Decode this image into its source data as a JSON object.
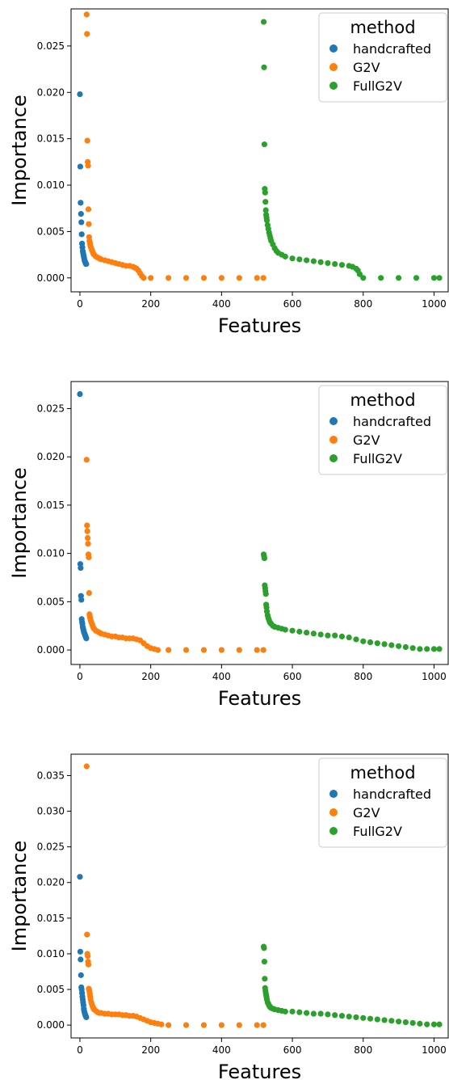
{
  "chart_data": [
    {
      "type": "scatter",
      "xlabel": "Features",
      "ylabel": "Importance",
      "xlim": [
        -25,
        1040
      ],
      "ylim": [
        -0.0015,
        0.029
      ],
      "xticks": [
        0,
        200,
        400,
        600,
        800,
        1000
      ],
      "yticks": [
        0.0,
        0.005,
        0.01,
        0.015,
        0.02,
        0.025
      ],
      "ytick_labels": [
        "0.000",
        "0.005",
        "0.010",
        "0.015",
        "0.020",
        "0.025"
      ],
      "legend": {
        "title": "method",
        "position": "top-right"
      },
      "series": [
        {
          "name": "handcrafted",
          "color": "#1f77b4",
          "x": [
            0,
            1,
            2,
            3,
            4,
            5,
            6,
            7,
            8,
            9,
            10,
            11,
            12,
            13,
            14,
            15,
            16,
            17,
            18
          ],
          "y": [
            0.0198,
            0.012,
            0.0081,
            0.0069,
            0.006,
            0.0047,
            0.0037,
            0.0033,
            0.0029,
            0.0027,
            0.0025,
            0.0023,
            0.0021,
            0.0019,
            0.0018,
            0.0017,
            0.0016,
            0.0015,
            0.0015
          ]
        },
        {
          "name": "G2V",
          "color": "#ff7f0e",
          "x": [
            19,
            20,
            21,
            22,
            23,
            24,
            25,
            26,
            27,
            28,
            29,
            30,
            32,
            34,
            36,
            38,
            40,
            45,
            50,
            55,
            60,
            70,
            80,
            90,
            100,
            110,
            120,
            130,
            140,
            150,
            155,
            160,
            165,
            170,
            175,
            180,
            200,
            250,
            300,
            350,
            400,
            450,
            500,
            518
          ],
          "y": [
            0.0284,
            0.0263,
            0.0148,
            0.0125,
            0.0121,
            0.0074,
            0.0058,
            0.0044,
            0.004,
            0.0038,
            0.0036,
            0.0034,
            0.0032,
            0.003,
            0.0028,
            0.0026,
            0.0025,
            0.0023,
            0.0022,
            0.0021,
            0.002,
            0.0019,
            0.0018,
            0.0017,
            0.0016,
            0.0015,
            0.0014,
            0.0013,
            0.0013,
            0.0012,
            0.0011,
            0.001,
            0.0008,
            0.0005,
            0.0002,
            0.0,
            0.0,
            0.0,
            0.0,
            0.0,
            0.0,
            0.0,
            0.0,
            0.0
          ]
        },
        {
          "name": "FullG2V",
          "color": "#2ca02c",
          "x": [
            519,
            520,
            521,
            522,
            523,
            524,
            525,
            526,
            527,
            528,
            530,
            532,
            534,
            536,
            538,
            540,
            545,
            550,
            555,
            560,
            570,
            580,
            600,
            620,
            640,
            660,
            680,
            700,
            720,
            740,
            760,
            770,
            780,
            785,
            790,
            800,
            850,
            900,
            950,
            1000,
            1015
          ],
          "y": [
            0.0276,
            0.0227,
            0.0144,
            0.0096,
            0.0092,
            0.0082,
            0.0073,
            0.0068,
            0.0065,
            0.0062,
            0.0057,
            0.0053,
            0.0049,
            0.0046,
            0.0043,
            0.004,
            0.0036,
            0.0032,
            0.0029,
            0.0027,
            0.0025,
            0.0023,
            0.0021,
            0.002,
            0.0019,
            0.0018,
            0.0017,
            0.0016,
            0.0015,
            0.0014,
            0.0013,
            0.0012,
            0.001,
            0.0008,
            0.0004,
            0.0,
            0.0,
            0.0,
            0.0,
            0.0,
            0.0
          ]
        }
      ]
    },
    {
      "type": "scatter",
      "xlabel": "Features",
      "ylabel": "Importance",
      "xlim": [
        -25,
        1040
      ],
      "ylim": [
        -0.0015,
        0.0278
      ],
      "xticks": [
        0,
        200,
        400,
        600,
        800,
        1000
      ],
      "yticks": [
        0.0,
        0.005,
        0.01,
        0.015,
        0.02,
        0.025
      ],
      "ytick_labels": [
        "0.000",
        "0.005",
        "0.010",
        "0.015",
        "0.020",
        "0.025"
      ],
      "legend": {
        "title": "method",
        "position": "top-right"
      },
      "series": [
        {
          "name": "handcrafted",
          "color": "#1f77b4",
          "x": [
            0,
            1,
            2,
            3,
            4,
            5,
            6,
            7,
            8,
            9,
            10,
            11,
            12,
            13,
            14,
            15,
            16,
            17,
            18
          ],
          "y": [
            0.0265,
            0.0089,
            0.0085,
            0.0056,
            0.0052,
            0.0032,
            0.0029,
            0.0027,
            0.0024,
            0.0022,
            0.0021,
            0.0019,
            0.0018,
            0.0017,
            0.0016,
            0.0015,
            0.0014,
            0.0013,
            0.0012
          ]
        },
        {
          "name": "G2V",
          "color": "#ff7f0e",
          "x": [
            19,
            20,
            21,
            22,
            23,
            24,
            25,
            26,
            27,
            28,
            29,
            30,
            32,
            34,
            36,
            38,
            40,
            45,
            50,
            55,
            60,
            70,
            80,
            90,
            100,
            110,
            120,
            130,
            140,
            150,
            160,
            170,
            180,
            190,
            200,
            210,
            220,
            250,
            300,
            350,
            400,
            450,
            500,
            518
          ],
          "y": [
            0.0197,
            0.0129,
            0.0123,
            0.0116,
            0.011,
            0.0099,
            0.0096,
            0.0059,
            0.0037,
            0.0035,
            0.0033,
            0.0031,
            0.0029,
            0.0027,
            0.0025,
            0.0023,
            0.0022,
            0.002,
            0.0019,
            0.0018,
            0.0017,
            0.0016,
            0.0015,
            0.0014,
            0.0014,
            0.0013,
            0.0013,
            0.0012,
            0.0012,
            0.0012,
            0.0011,
            0.001,
            0.0007,
            0.0004,
            0.0002,
            0.0001,
            0.0,
            0.0,
            0.0,
            0.0,
            0.0,
            0.0,
            0.0,
            0.0
          ]
        },
        {
          "name": "FullG2V",
          "color": "#2ca02c",
          "x": [
            519,
            520,
            521,
            522,
            523,
            524,
            525,
            526,
            527,
            528,
            530,
            532,
            534,
            536,
            538,
            540,
            545,
            550,
            560,
            570,
            580,
            600,
            620,
            640,
            660,
            680,
            700,
            720,
            740,
            760,
            780,
            800,
            820,
            840,
            860,
            880,
            900,
            920,
            940,
            960,
            980,
            1000,
            1015
          ],
          "y": [
            0.0099,
            0.0097,
            0.0095,
            0.0067,
            0.0064,
            0.0061,
            0.0058,
            0.0047,
            0.0044,
            0.004,
            0.0036,
            0.0033,
            0.0031,
            0.0029,
            0.0028,
            0.0027,
            0.0025,
            0.0024,
            0.0023,
            0.0022,
            0.0021,
            0.002,
            0.0019,
            0.0018,
            0.0017,
            0.0016,
            0.0015,
            0.0015,
            0.0014,
            0.0013,
            0.0011,
            0.0009,
            0.0008,
            0.0007,
            0.0006,
            0.0005,
            0.0004,
            0.0003,
            0.0002,
            0.0001,
            0.0001,
            0.0001,
            0.0001
          ]
        }
      ]
    },
    {
      "type": "scatter",
      "xlabel": "Features",
      "ylabel": "Importance",
      "xlim": [
        -25,
        1040
      ],
      "ylim": [
        -0.0018,
        0.038
      ],
      "xticks": [
        0,
        200,
        400,
        600,
        800,
        1000
      ],
      "yticks": [
        0.0,
        0.005,
        0.01,
        0.015,
        0.02,
        0.025,
        0.03,
        0.035
      ],
      "ytick_labels": [
        "0.000",
        "0.005",
        "0.010",
        "0.015",
        "0.020",
        "0.025",
        "0.030",
        "0.035"
      ],
      "legend": {
        "title": "method",
        "position": "top-right"
      },
      "series": [
        {
          "name": "handcrafted",
          "color": "#1f77b4",
          "x": [
            0,
            1,
            2,
            3,
            4,
            5,
            6,
            7,
            8,
            9,
            10,
            11,
            12,
            13,
            14,
            15,
            16,
            17,
            18
          ],
          "y": [
            0.0208,
            0.0103,
            0.0092,
            0.007,
            0.0053,
            0.005,
            0.0045,
            0.004,
            0.0036,
            0.0032,
            0.0028,
            0.0023,
            0.002,
            0.0018,
            0.0016,
            0.0015,
            0.0013,
            0.0012,
            0.0011
          ]
        },
        {
          "name": "G2V",
          "color": "#ff7f0e",
          "x": [
            19,
            20,
            21,
            22,
            23,
            24,
            25,
            26,
            27,
            28,
            29,
            30,
            32,
            34,
            36,
            38,
            40,
            45,
            50,
            55,
            60,
            70,
            80,
            90,
            100,
            110,
            120,
            130,
            140,
            150,
            160,
            170,
            180,
            190,
            200,
            210,
            220,
            230,
            250,
            300,
            350,
            400,
            450,
            500,
            518
          ],
          "y": [
            0.0363,
            0.0127,
            0.01,
            0.0097,
            0.0089,
            0.0085,
            0.0051,
            0.005,
            0.0047,
            0.0044,
            0.004,
            0.0036,
            0.0032,
            0.0029,
            0.0026,
            0.0024,
            0.0022,
            0.002,
            0.0018,
            0.0017,
            0.0017,
            0.0016,
            0.0016,
            0.0015,
            0.0015,
            0.0015,
            0.0014,
            0.0014,
            0.0013,
            0.0013,
            0.0012,
            0.001,
            0.0008,
            0.0006,
            0.0004,
            0.0003,
            0.0002,
            0.0001,
            0.0,
            0.0,
            0.0,
            0.0,
            0.0,
            0.0,
            0.0
          ]
        },
        {
          "name": "FullG2V",
          "color": "#2ca02c",
          "x": [
            519,
            520,
            521,
            522,
            523,
            524,
            525,
            526,
            527,
            528,
            530,
            532,
            534,
            536,
            538,
            540,
            545,
            550,
            560,
            570,
            580,
            600,
            620,
            640,
            660,
            680,
            700,
            720,
            740,
            760,
            780,
            800,
            820,
            840,
            860,
            880,
            900,
            920,
            940,
            960,
            980,
            1000,
            1015
          ],
          "y": [
            0.011,
            0.0108,
            0.0089,
            0.0065,
            0.0052,
            0.0048,
            0.0045,
            0.0042,
            0.0039,
            0.0036,
            0.0032,
            0.003,
            0.0028,
            0.0026,
            0.0025,
            0.0024,
            0.0023,
            0.0022,
            0.0021,
            0.002,
            0.0019,
            0.0019,
            0.0018,
            0.0017,
            0.0016,
            0.0016,
            0.0015,
            0.0014,
            0.0013,
            0.0012,
            0.0011,
            0.001,
            0.0009,
            0.0008,
            0.0007,
            0.0006,
            0.0005,
            0.0004,
            0.0003,
            0.0002,
            0.0001,
            0.0001,
            0.0001
          ]
        }
      ]
    }
  ]
}
